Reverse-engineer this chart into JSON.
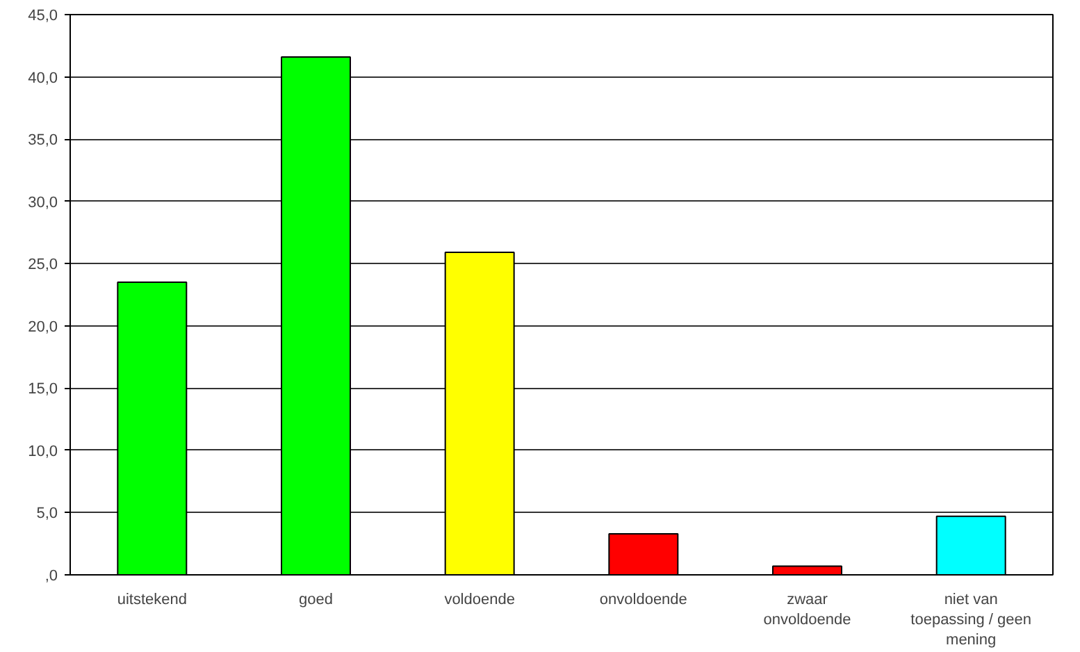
{
  "chart_data": {
    "type": "bar",
    "categories": [
      "uitstekend",
      "goed",
      "voldoende",
      "onvoldoende",
      "zwaar\nonvoldoende",
      "niet van\ntoepassing / geen\nmening"
    ],
    "values": [
      23.5,
      41.6,
      25.9,
      3.3,
      0.7,
      4.7
    ],
    "colors": [
      "#00ff00",
      "#00ff00",
      "#ffff00",
      "#ff0000",
      "#ff0000",
      "#00ffff"
    ],
    "ylim": [
      0,
      45
    ],
    "yticks": [
      {
        "value": 0,
        "label": ",0"
      },
      {
        "value": 5,
        "label": "5,0"
      },
      {
        "value": 10,
        "label": "10,0"
      },
      {
        "value": 15,
        "label": "15,0"
      },
      {
        "value": 20,
        "label": "20,0"
      },
      {
        "value": 25,
        "label": "25,0"
      },
      {
        "value": 30,
        "label": "30,0"
      },
      {
        "value": 35,
        "label": "35,0"
      },
      {
        "value": 40,
        "label": "40,0"
      },
      {
        "value": 45,
        "label": "45,0"
      }
    ],
    "grid": "y"
  }
}
